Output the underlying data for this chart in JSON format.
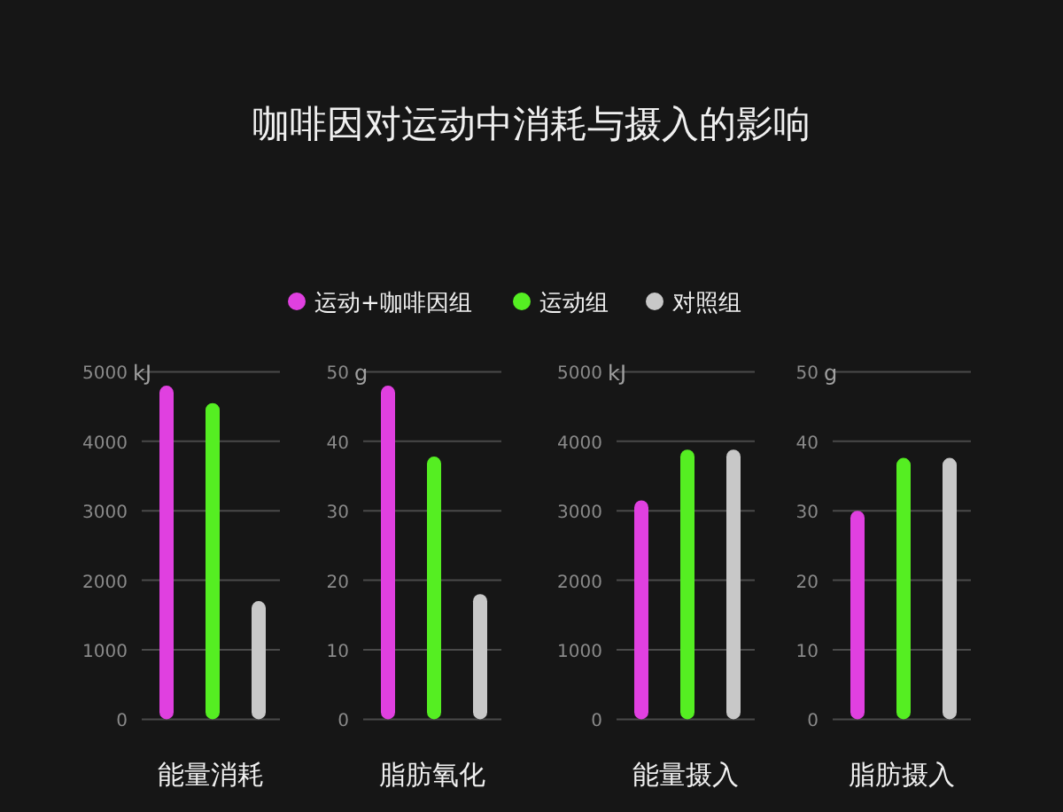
{
  "chart_data": [
    {
      "type": "bar",
      "title": "咖啡因对运动中消耗与摄入的影响",
      "legend": "top",
      "grid": "y",
      "categories": [
        "能量消耗"
      ],
      "series": [
        {
          "name": "运动+咖啡因组",
          "color": "#e040e0",
          "values": [
            4800
          ]
        },
        {
          "name": "运动组",
          "color": "#55ee22",
          "values": [
            4550
          ]
        },
        {
          "name": "对照组",
          "color": "#c8c8c8",
          "values": [
            1700
          ]
        }
      ],
      "ylabel": "kJ",
      "ylim": [
        0,
        5000
      ],
      "yticks": [
        0,
        1000,
        2000,
        3000,
        4000,
        5000
      ]
    },
    {
      "type": "bar",
      "grid": "y",
      "categories": [
        "脂肪氧化"
      ],
      "series": [
        {
          "color": "#e040e0",
          "values": [
            48
          ]
        },
        {
          "color": "#55ee22",
          "values": [
            37.8
          ]
        },
        {
          "color": "#c8c8c8",
          "values": [
            18
          ]
        }
      ],
      "ylabel": "g",
      "ylim": [
        0,
        50
      ],
      "yticks": [
        0,
        10,
        20,
        30,
        40,
        50
      ]
    },
    {
      "type": "bar",
      "grid": "y",
      "categories": [
        "能量摄入"
      ],
      "series": [
        {
          "color": "#e040e0",
          "values": [
            3150
          ]
        },
        {
          "color": "#55ee22",
          "values": [
            3880
          ]
        },
        {
          "color": "#c8c8c8",
          "values": [
            3880
          ]
        }
      ],
      "ylabel": "kJ",
      "ylim": [
        0,
        5000
      ],
      "yticks": [
        0,
        1000,
        2000,
        3000,
        4000,
        5000
      ]
    },
    {
      "type": "bar",
      "grid": "y",
      "categories": [
        "脂肪摄入"
      ],
      "series": [
        {
          "color": "#e040e0",
          "values": [
            30
          ]
        },
        {
          "color": "#55ee22",
          "values": [
            37.6
          ]
        },
        {
          "color": "#c8c8c8",
          "values": [
            37.6
          ]
        }
      ],
      "ylabel": "g",
      "ylim": [
        0,
        50
      ],
      "yticks": [
        0,
        10,
        20,
        30,
        40,
        50
      ]
    }
  ]
}
